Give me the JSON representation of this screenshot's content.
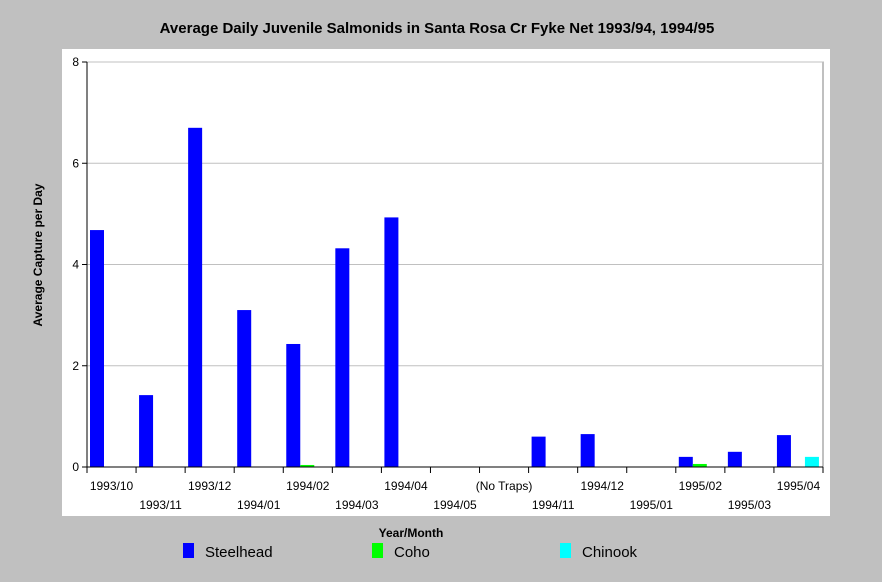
{
  "chart_data": {
    "type": "bar",
    "title": "Average Daily Juvenile Salmonids in Santa Rosa Cr Fyke Net 1993/94, 1994/95",
    "xlabel": "Year/Month",
    "ylabel": "Average Capture per Day",
    "ylim": [
      0,
      8
    ],
    "yticks": [
      "0",
      "2",
      "4",
      "6",
      "8"
    ],
    "grid": true,
    "legend_position": "bottom",
    "categories": [
      "1993/10",
      "1993/11",
      "1993/12",
      "1994/01",
      "1994/02",
      "1994/03",
      "1994/04",
      "1994/05",
      "(No Traps)",
      "1994/11",
      "1994/12",
      "1995/01",
      "1995/02",
      "1995/03",
      "1995/04"
    ],
    "series": [
      {
        "name": "Steelhead",
        "color": "#0000ff",
        "values": [
          4.68,
          1.42,
          6.7,
          3.1,
          2.43,
          4.32,
          4.93,
          0,
          0,
          0.6,
          0.65,
          0,
          0.2,
          0.3,
          0.63
        ]
      },
      {
        "name": "Coho",
        "color": "#00ff00",
        "values": [
          0,
          0,
          0,
          0,
          0.04,
          0,
          0,
          0,
          0,
          0,
          0,
          0,
          0.06,
          0,
          0
        ]
      },
      {
        "name": "Chinook",
        "color": "#00ffff",
        "values": [
          0,
          0,
          0,
          0,
          0,
          0,
          0,
          0,
          0,
          0,
          0,
          0,
          0,
          0,
          0.2
        ]
      }
    ]
  }
}
